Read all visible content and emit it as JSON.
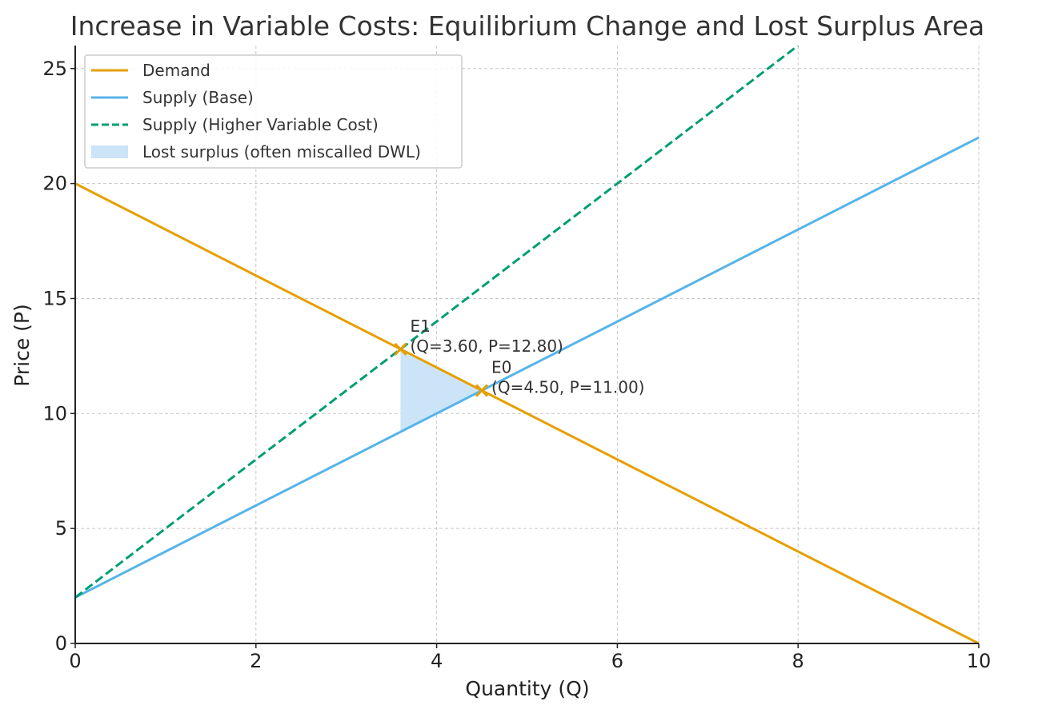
{
  "chart_data": {
    "type": "line",
    "title": "Increase in Variable Costs: Equilibrium Change and Lost Surplus Area",
    "xlabel": "Quantity (Q)",
    "ylabel": "Price (P)",
    "xlim": [
      0,
      10
    ],
    "ylim": [
      0,
      26
    ],
    "xticks": [
      0,
      2,
      4,
      6,
      8,
      10
    ],
    "yticks": [
      0,
      5,
      10,
      15,
      20,
      25
    ],
    "grid": true,
    "legend_position": "top-left",
    "series": [
      {
        "name": "Demand",
        "style": "solid",
        "color": "#E69F00",
        "x": [
          0,
          10
        ],
        "y": [
          20,
          0
        ]
      },
      {
        "name": "Supply (Base)",
        "style": "solid",
        "color": "#56B4E9",
        "x": [
          0,
          10
        ],
        "y": [
          2,
          22
        ]
      },
      {
        "name": "Supply (Higher Variable Cost)",
        "style": "dashed",
        "color": "#009E73",
        "x": [
          0,
          8
        ],
        "y": [
          2,
          26
        ]
      }
    ],
    "shaded_region": {
      "name": "Lost surplus (often miscalled DWL)",
      "color": "#cce4f7",
      "polygon": [
        [
          3.6,
          12.8
        ],
        [
          4.5,
          11.0
        ],
        [
          3.6,
          9.2
        ]
      ]
    },
    "points": [
      {
        "name": "E1",
        "label": "E1",
        "coords": "(Q=3.60, P=12.80)",
        "x": 3.6,
        "y": 12.8,
        "color": "#E69F00"
      },
      {
        "name": "E0",
        "label": "E0",
        "coords": "(Q=4.50, P=11.00)",
        "x": 4.5,
        "y": 11.0,
        "color": "#E69F00"
      }
    ]
  }
}
